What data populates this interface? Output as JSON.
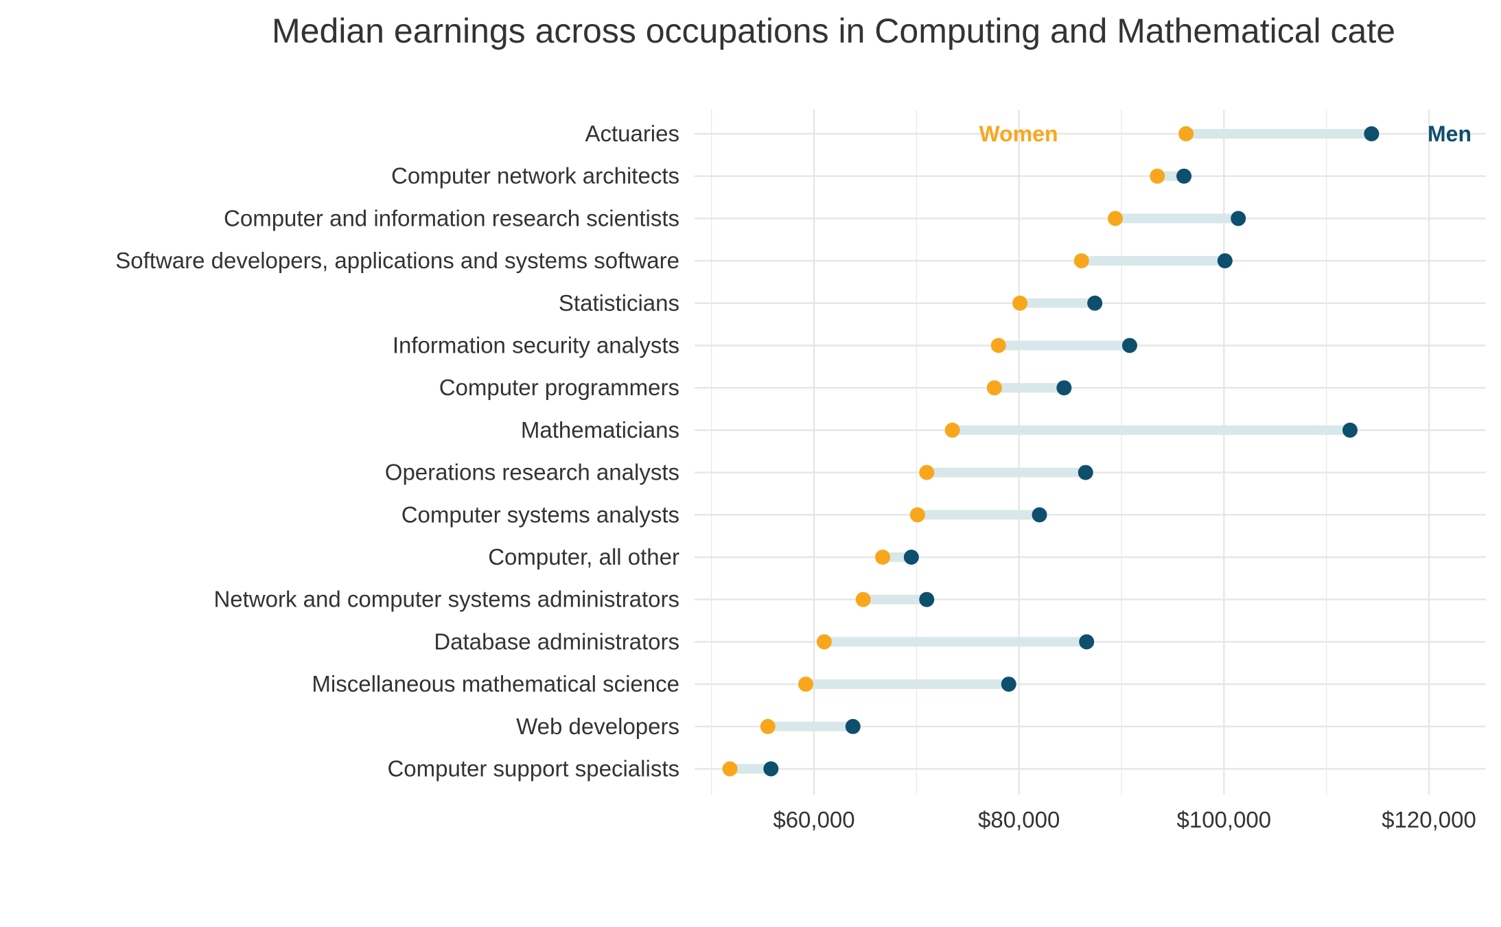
{
  "title": "Median earnings across occupations in Computing and Mathematical cate",
  "chart_data": {
    "type": "dumbbell",
    "title": "Median earnings across occupations in Computing and Mathematical cate",
    "xlabel": "",
    "ylabel": "",
    "xlim": [
      50000,
      125000
    ],
    "x_ticks": [
      60000,
      80000,
      100000,
      120000
    ],
    "x_tick_labels": [
      "$60,000",
      "$80,000",
      "$100,000",
      "$120,000"
    ],
    "legend": {
      "women_label": "Women",
      "men_label": "Men"
    },
    "colors": {
      "women": "#F8A71D",
      "men": "#0E4F6E",
      "segment": "#D8E8EA",
      "grid": "#E6E6E6"
    },
    "categories": [
      "Actuaries",
      "Computer network architects",
      "Computer and information research scientists",
      "Software developers, applications and systems software",
      "Statisticians",
      "Information security analysts",
      "Computer programmers",
      "Mathematicians",
      "Operations research analysts",
      "Computer systems analysts",
      "Computer, all other",
      "Network and computer systems administrators",
      "Database administrators",
      "Miscellaneous mathematical science",
      "Web developers",
      "Computer support specialists"
    ],
    "series": [
      {
        "name": "Women",
        "values": [
          96300,
          93500,
          89400,
          86100,
          80100,
          78000,
          77600,
          73500,
          71000,
          70100,
          66700,
          64800,
          61000,
          59200,
          55500,
          51800
        ]
      },
      {
        "name": "Men",
        "values": [
          114400,
          96100,
          101400,
          100100,
          87400,
          90800,
          84400,
          112300,
          86500,
          82000,
          69500,
          71000,
          86600,
          79000,
          63800,
          55800
        ]
      }
    ]
  }
}
